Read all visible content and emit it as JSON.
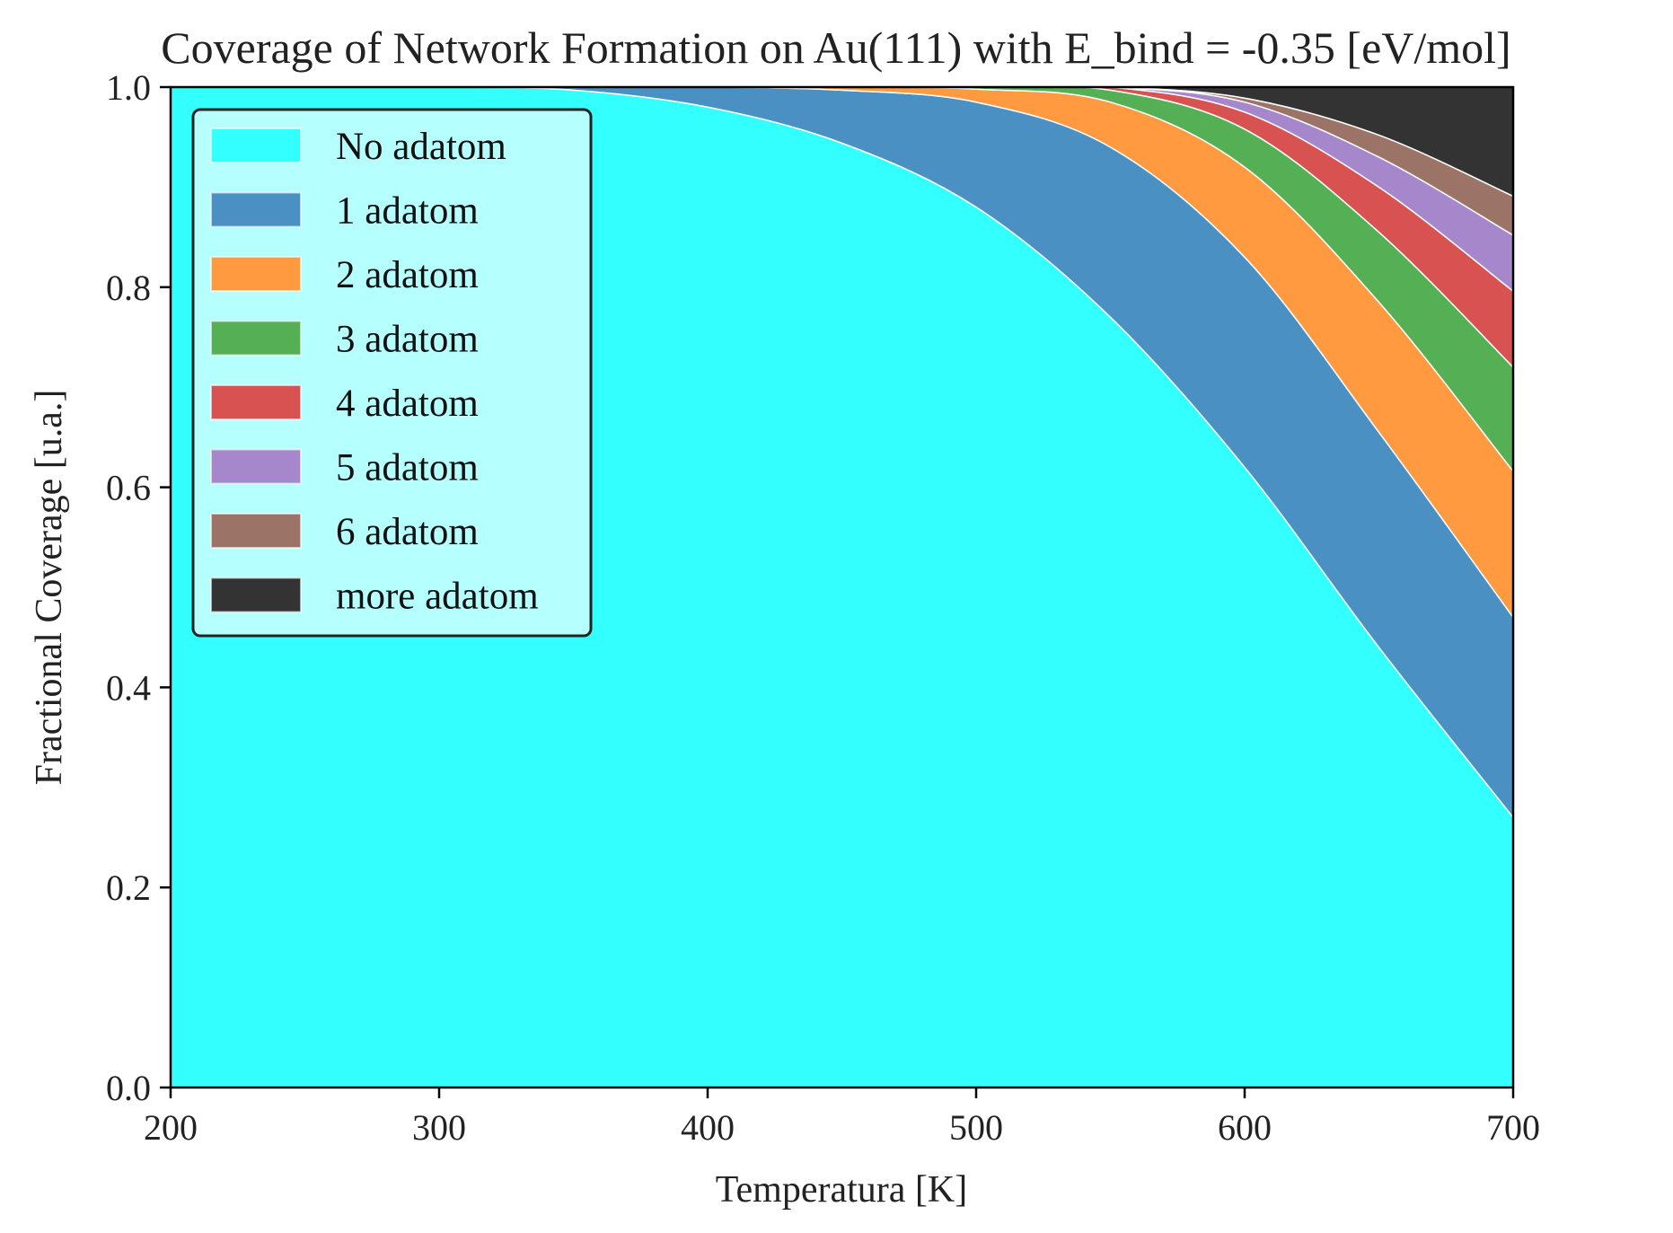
{
  "chart_data": {
    "type": "area",
    "stacked": true,
    "title": "Coverage of Network Formation on Au(111) with E_bind = -0.35 [eV/mol]",
    "xlabel": "Temperatura [K]",
    "ylabel": "Fractional Coverage [u.a.]",
    "xlim": [
      200,
      700
    ],
    "ylim": [
      0,
      1
    ],
    "xticks": [
      "200",
      "300",
      "400",
      "500",
      "600",
      "700"
    ],
    "yticks": [
      "0.0",
      "0.2",
      "0.4",
      "0.6",
      "0.8",
      "1.0"
    ],
    "grid": false,
    "legend_position": "upper-left",
    "x": [
      200,
      250,
      300,
      350,
      400,
      450,
      500,
      550,
      600,
      650,
      700
    ],
    "series": [
      {
        "name": "No adatom",
        "color": "#33ffff",
        "values": [
          1.0,
          1.0,
          1.0,
          0.997,
          0.98,
          0.944,
          0.88,
          0.77,
          0.62,
          0.44,
          0.27
        ]
      },
      {
        "name": "1 adatom",
        "color": "#4b90c2",
        "values": [
          0.0,
          0.0,
          0.0,
          0.003,
          0.02,
          0.053,
          0.105,
          0.17,
          0.21,
          0.215,
          0.2
        ]
      },
      {
        "name": "2 adatom",
        "color": "#ff9a40",
        "values": [
          0.0,
          0.0,
          0.0,
          0.0,
          0.0,
          0.003,
          0.013,
          0.045,
          0.09,
          0.13,
          0.146
        ]
      },
      {
        "name": "3 adatom",
        "color": "#55b055",
        "values": [
          0.0,
          0.0,
          0.0,
          0.0,
          0.0,
          0.0,
          0.002,
          0.012,
          0.038,
          0.07,
          0.104
        ]
      },
      {
        "name": "4 adatom",
        "color": "#d95252",
        "values": [
          0.0,
          0.0,
          0.0,
          0.0,
          0.0,
          0.0,
          0.0,
          0.003,
          0.017,
          0.045,
          0.076
        ]
      },
      {
        "name": "5 adatom",
        "color": "#a787cc",
        "values": [
          0.0,
          0.0,
          0.0,
          0.0,
          0.0,
          0.0,
          0.0,
          0.0,
          0.01,
          0.03,
          0.056
        ]
      },
      {
        "name": "6 adatom",
        "color": "#9c7367",
        "values": [
          0.0,
          0.0,
          0.0,
          0.0,
          0.0,
          0.0,
          0.0,
          0.0,
          0.004,
          0.022,
          0.039
        ]
      },
      {
        "name": "more adatom",
        "color": "#333333",
        "values": [
          0.0,
          0.0,
          0.0,
          0.0,
          0.0,
          0.003,
          0.0,
          0.0,
          0.011,
          0.048,
          0.109
        ]
      }
    ]
  }
}
